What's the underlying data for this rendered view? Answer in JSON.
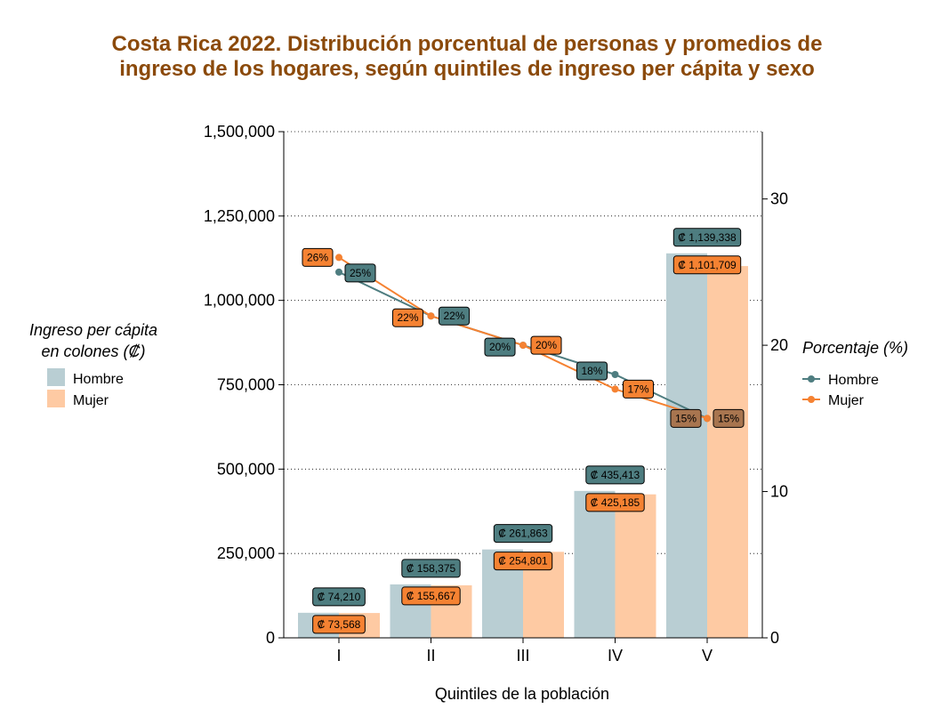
{
  "title_line1": "Costa Rica 2022. Distribución porcentual de personas y promedios de",
  "title_line2": "ingreso de los hogares, según quintiles de ingreso per cápita y sexo",
  "colors": {
    "title": "#8B4A0B",
    "bar_hombre": "#B9CED3",
    "bar_mujer": "#FECAA3",
    "line_hombre": "#4E7D80",
    "line_mujer": "#F58232",
    "label_hombre_bg": "#4E7D80",
    "label_mujer_bg": "#F58232",
    "label_overlap_bg": "#A8754F"
  },
  "chart_data": {
    "type": "bar",
    "title": "Costa Rica 2022. Distribución porcentual de personas y promedios de ingreso de los hogares, según quintiles de ingreso per cápita y sexo",
    "xlabel": "Quintiles de la población",
    "categories": [
      "I",
      "II",
      "III",
      "IV",
      "V"
    ],
    "left_axis": {
      "ylim": [
        0,
        1500000
      ],
      "ticks": [
        "0",
        "250,000",
        "500,000",
        "750,000",
        "1,000,000",
        "1,250,000",
        "1,500,000"
      ]
    },
    "right_axis": {
      "ylim": [
        0,
        34.6
      ],
      "ticks": [
        "0",
        "10",
        "20",
        "30"
      ]
    },
    "bar_legend": {
      "title_line1": "Ingreso per cápita",
      "title_line2": "en colones (₡)",
      "items": [
        "Hombre",
        "Mujer"
      ]
    },
    "line_legend": {
      "title": "Porcentaje (%)",
      "items": [
        "Hombre",
        "Mujer"
      ]
    },
    "bar_series": [
      {
        "name": "Hombre",
        "values": [
          74210,
          158375,
          261863,
          435413,
          1139338
        ],
        "labels": [
          "₡ 74,210",
          "₡ 158,375",
          "₡ 261,863",
          "₡ 435,413",
          "₡ 1,139,338"
        ]
      },
      {
        "name": "Mujer",
        "values": [
          73568,
          155667,
          254801,
          425185,
          1101709
        ],
        "labels": [
          "₡ 73,568",
          "₡ 155,667",
          "₡ 254,801",
          "₡ 425,185",
          "₡ 1,101,709"
        ]
      }
    ],
    "line_series": [
      {
        "name": "Hombre",
        "values": [
          25,
          22,
          20,
          18,
          15
        ],
        "labels": [
          "25%",
          "22%",
          "20%",
          "18%",
          "15%"
        ]
      },
      {
        "name": "Mujer",
        "values": [
          26,
          22,
          20,
          17,
          15
        ],
        "labels": [
          "26%",
          "22%",
          "20%",
          "17%",
          "15%"
        ]
      }
    ],
    "grid": "horizontal-dotted"
  }
}
